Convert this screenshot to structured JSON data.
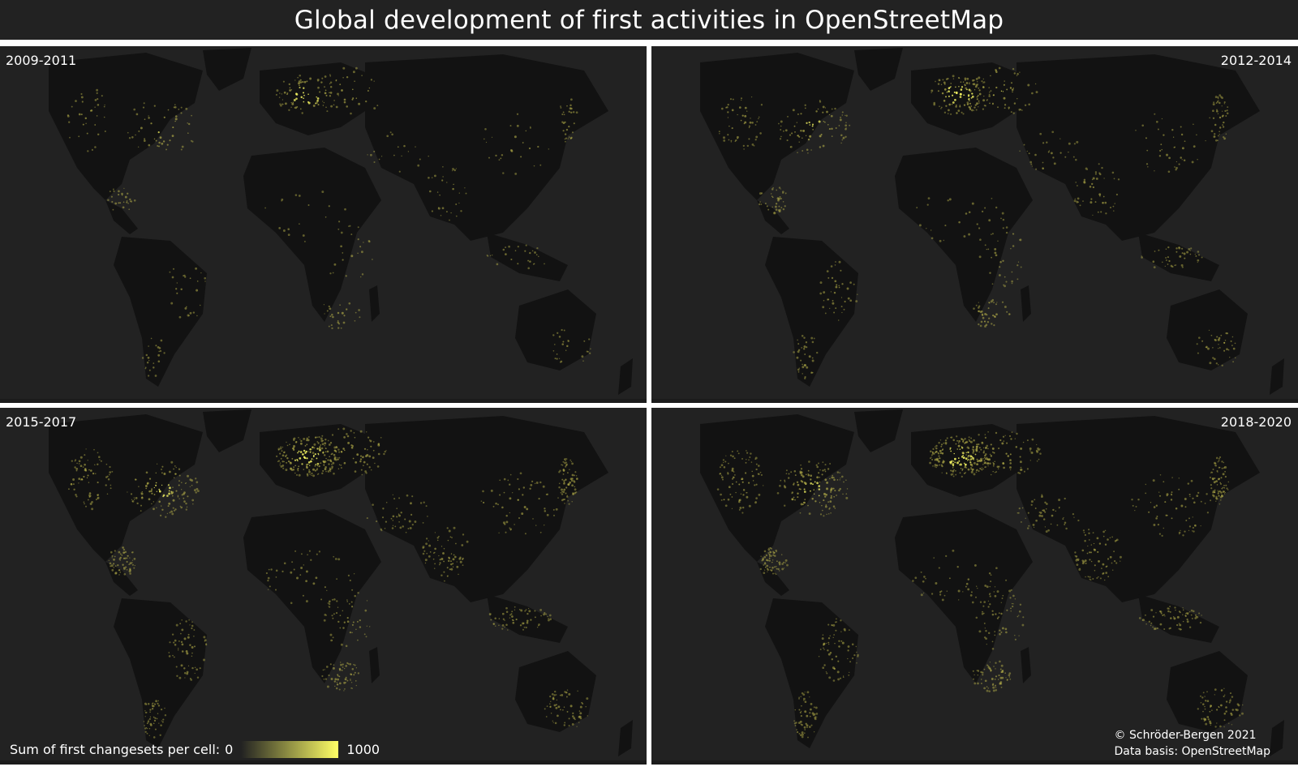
{
  "title": "Global development of first activities in OpenStreetMap",
  "panels": [
    {
      "period": "2009-2011",
      "label_side": "left",
      "intensity": 0.35
    },
    {
      "period": "2012-2014",
      "label_side": "right",
      "intensity": 0.55
    },
    {
      "period": "2015-2017",
      "label_side": "left",
      "intensity": 0.8
    },
    {
      "period": "2018-2020",
      "label_side": "right",
      "intensity": 0.9
    }
  ],
  "legend": {
    "label": "Sum of first changesets per cell:",
    "min": "0",
    "max": "1000"
  },
  "credits": {
    "author": "© Schröder-Bergen 2021",
    "source": "Data basis: OpenStreetMap"
  },
  "colors": {
    "background": "#222222",
    "land": "#121212",
    "activity_low": "#b8b24a",
    "activity_high": "#ffff66",
    "separator": "#ffffff"
  }
}
